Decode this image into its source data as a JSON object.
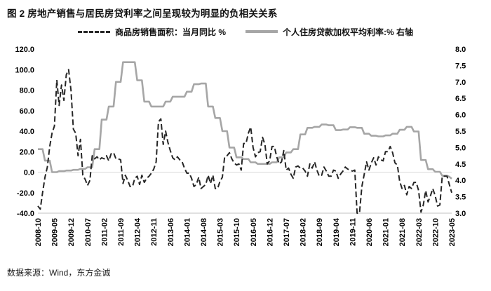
{
  "figure": {
    "title": "图 2  房地产销售与居民房贷利率之间呈现较为明显的负相关关系",
    "source_note": "数据来源：Wind，东方金诚"
  },
  "chart_data": {
    "type": "line",
    "title": "房地产销售与居民房贷利率之间呈现较为明显的负相关关系",
    "legend_position": "top",
    "grid": "zero-line-only",
    "x_frequency": "monthly",
    "x_start": "2008-10",
    "x_end": "2023-05",
    "x_tick_every": 7,
    "x_tick_labels": [
      "2008-10",
      "2009-05",
      "2009-12",
      "2010-07",
      "2011-02",
      "2011-09",
      "2012-04",
      "2012-11",
      "2013-06",
      "2014-01",
      "2014-08",
      "2015-03",
      "2015-10",
      "2016-05",
      "2016-12",
      "2017-07",
      "2018-02",
      "2018-09",
      "2019-04",
      "2019-11",
      "2020-06",
      "2021-01",
      "2021-08",
      "2022-03",
      "2022-10",
      "2023-05"
    ],
    "left_axis": {
      "min": -40,
      "max": 120,
      "ticks": [
        120,
        100,
        80,
        60,
        40,
        20,
        0,
        -20,
        -40
      ]
    },
    "right_axis": {
      "min": 3,
      "max": 8,
      "ticks": [
        8,
        7.5,
        7,
        6.5,
        6,
        5.5,
        5,
        4.5,
        4,
        3.5,
        3
      ]
    },
    "legend": [
      {
        "label": "商品房销售面积：当月同比 %",
        "style": "dashed",
        "color": "#262626",
        "axis": "left"
      },
      {
        "label": "个人住房贷款加权平均利率:% 右轴",
        "style": "solid",
        "color": "#a6a6a6",
        "axis": "right"
      }
    ],
    "series": [
      {
        "name": "商品房销售面积：当月同比 %",
        "axis": "left",
        "line": "dashed",
        "color": "#262626",
        "values": [
          -33,
          -36,
          -20,
          -5,
          5,
          25,
          38,
          45,
          90,
          65,
          85,
          70,
          95,
          100,
          80,
          42,
          38,
          16,
          32,
          -3,
          -7,
          -13,
          -8,
          16,
          13,
          15,
          12,
          14,
          13,
          16,
          11,
          18,
          19,
          13,
          13,
          12,
          -11,
          -3,
          -8,
          -14,
          -14,
          -6,
          -4,
          -12,
          -3,
          -10,
          -6,
          -4,
          -1,
          3,
          10,
          49,
          52,
          27,
          40,
          29,
          21,
          14,
          12,
          15,
          12,
          10,
          4,
          -1,
          -1,
          -6,
          -14,
          -12,
          -5,
          -16,
          -14,
          -12,
          -3,
          -11,
          -3,
          -16,
          -16,
          -9,
          -5,
          15,
          16,
          19,
          13,
          9,
          7,
          8,
          2,
          28,
          28,
          38,
          44,
          24,
          15,
          19,
          20,
          34,
          27,
          8,
          11,
          25,
          25,
          15,
          8,
          10,
          21,
          2,
          4,
          -2,
          -6,
          5,
          6,
          4,
          4,
          1,
          -4,
          8,
          4,
          10,
          2,
          -4,
          -3,
          5,
          1,
          -4,
          -4,
          2,
          1,
          -6,
          -2,
          1,
          5,
          3,
          2,
          1,
          2,
          -40,
          -40,
          -14,
          -2,
          10,
          2,
          9,
          14,
          7,
          15,
          12,
          11,
          20,
          20,
          25,
          19,
          9,
          7,
          -9,
          -16,
          -13,
          -22,
          -14,
          -16,
          -10,
          -10,
          -18,
          -39,
          -32,
          -18,
          -29,
          -23,
          -16,
          -23,
          -33,
          -32,
          -4,
          -4,
          -4,
          -12,
          -20
        ]
      },
      {
        "name": "个人住房贷款加权平均利率:% 右轴",
        "axis": "right",
        "line": "solid",
        "color": "#a6a6a6",
        "values": [
          4.95,
          4.95,
          4.95,
          4.6,
          4.6,
          4.6,
          4.25,
          4.25,
          4.25,
          4.28,
          4.28,
          4.28,
          4.3,
          4.3,
          4.3,
          4.32,
          4.32,
          4.32,
          4.35,
          4.35,
          4.35,
          4.4,
          4.4,
          4.4,
          4.95,
          4.95,
          4.95,
          5.85,
          5.85,
          5.85,
          6.25,
          6.25,
          6.25,
          7.0,
          7.0,
          7.0,
          7.6,
          7.6,
          7.6,
          7.6,
          7.6,
          7.6,
          7.05,
          7.05,
          7.05,
          6.4,
          6.4,
          6.4,
          6.25,
          6.25,
          6.25,
          6.25,
          6.25,
          6.25,
          6.4,
          6.4,
          6.4,
          6.55,
          6.55,
          6.55,
          6.55,
          6.55,
          6.55,
          6.7,
          6.7,
          6.7,
          6.93,
          6.93,
          6.93,
          6.95,
          6.95,
          6.95,
          6.25,
          6.25,
          6.25,
          5.9,
          5.9,
          5.9,
          5.5,
          5.5,
          5.5,
          5.0,
          5.0,
          5.0,
          4.7,
          4.7,
          4.7,
          4.65,
          4.65,
          4.65,
          4.55,
          4.55,
          4.55,
          4.5,
          4.5,
          4.5,
          4.5,
          4.5,
          4.5,
          4.55,
          4.55,
          4.55,
          4.7,
          4.7,
          4.7,
          4.85,
          4.85,
          4.85,
          4.95,
          4.95,
          4.95,
          5.4,
          5.4,
          5.4,
          5.6,
          5.6,
          5.6,
          5.63,
          5.63,
          5.63,
          5.7,
          5.7,
          5.7,
          5.68,
          5.68,
          5.68,
          5.53,
          5.53,
          5.53,
          5.55,
          5.55,
          5.55,
          5.62,
          5.62,
          5.62,
          5.6,
          5.6,
          5.6,
          5.42,
          5.42,
          5.42,
          5.36,
          5.36,
          5.36,
          5.34,
          5.34,
          5.34,
          5.37,
          5.37,
          5.37,
          5.42,
          5.42,
          5.42,
          5.54,
          5.54,
          5.54,
          5.63,
          5.63,
          5.63,
          5.49,
          5.49,
          5.49,
          4.62,
          4.62,
          4.62,
          4.34,
          4.34,
          4.34,
          4.26,
          4.26,
          4.26,
          4.14,
          4.14,
          4.14,
          4.11,
          4.05
        ]
      }
    ]
  }
}
